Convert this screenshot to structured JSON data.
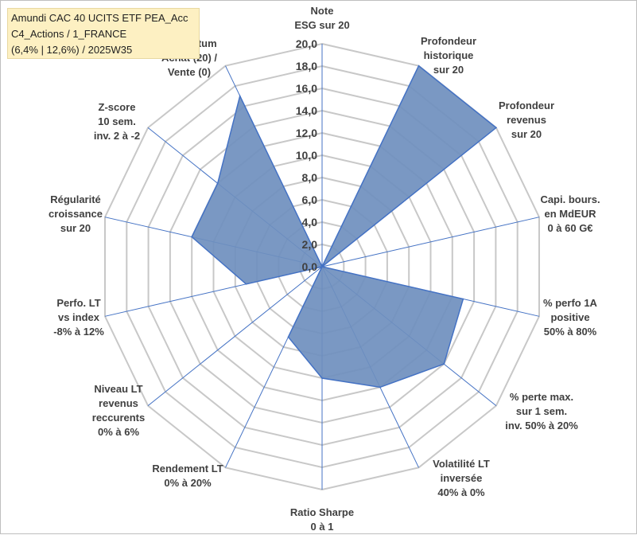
{
  "title_box": {
    "line1": "Amundi CAC 40 UCITS ETF PEA_Acc",
    "line2": "C4_Actions / 1_FRANCE",
    "line3": "(6,4% | 12,6%) / 2025W35"
  },
  "chart_data": {
    "type": "radar",
    "r_range": [
      0,
      20
    ],
    "grid": true,
    "ticks": [
      "0,0",
      "2,0",
      "4,0",
      "6,0",
      "8,0",
      "10,0",
      "12,0",
      "14,0",
      "16,0",
      "18,0",
      "20,0"
    ],
    "axes": [
      {
        "lines": [
          "Note",
          "ESG sur 20"
        ]
      },
      {
        "lines": [
          "Profondeur",
          "historique",
          "sur 20"
        ]
      },
      {
        "lines": [
          "Profondeur",
          "revenus",
          "sur 20"
        ]
      },
      {
        "lines": [
          "Capi. bours.",
          "en MdEUR",
          "0 à 60 G€"
        ]
      },
      {
        "lines": [
          "% perfo 1A",
          "positive",
          "50% à 80%"
        ]
      },
      {
        "lines": [
          "% perte max.",
          "sur 1 sem.",
          "inv. 50% à 20%"
        ]
      },
      {
        "lines": [
          "Volatilité LT",
          "inversée",
          "40% à 0%"
        ]
      },
      {
        "lines": [
          "Ratio Sharpe",
          "0 à 1"
        ]
      },
      {
        "lines": [
          "Rendement LT",
          "0% à 20%"
        ]
      },
      {
        "lines": [
          "Niveau LT",
          "revenus",
          "reccurents",
          "0% à 6%"
        ]
      },
      {
        "lines": [
          "Perfo. LT",
          "vs index",
          "-8% à 12%"
        ]
      },
      {
        "lines": [
          "Régularité",
          "croissance",
          "sur 20"
        ]
      },
      {
        "lines": [
          "Z-score",
          "10 sem.",
          "inv. 2 à -2"
        ]
      },
      {
        "lines": [
          "Momentum",
          "Achat (20) /",
          "Vente (0)"
        ]
      }
    ],
    "series": [
      {
        "values": [
          0,
          20,
          20,
          0,
          13,
          14,
          12,
          10,
          7,
          0,
          7,
          12,
          12,
          17
        ]
      }
    ],
    "colors": {
      "fill": "#6f8fbe",
      "stroke": "#4472c4",
      "grid": "#c8c8c8",
      "spoke": "#4472c4"
    }
  }
}
